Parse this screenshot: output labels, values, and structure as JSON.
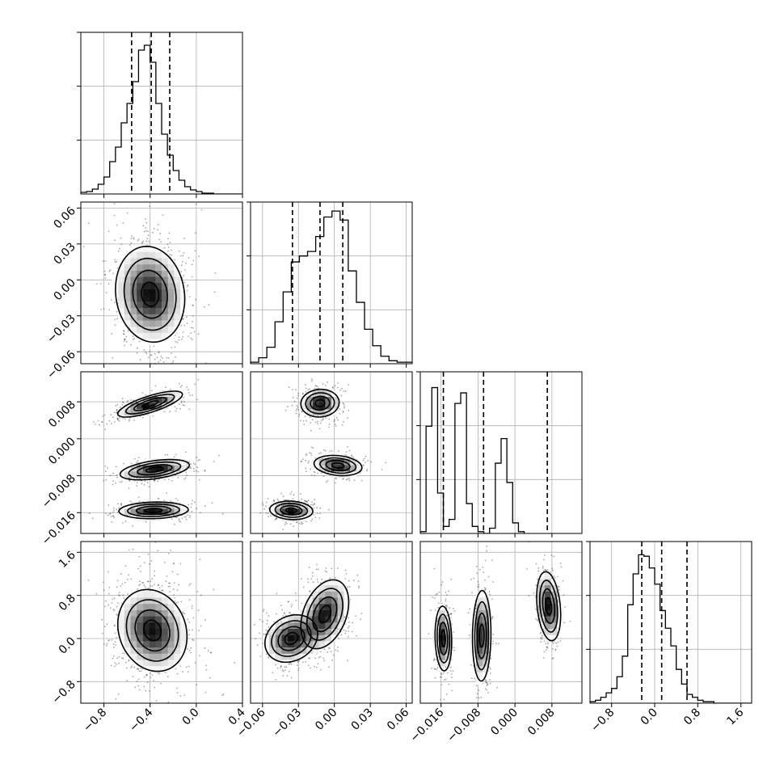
{
  "chart_data": {
    "type": "corner",
    "grid": true,
    "parameters": [
      {
        "id": "p0",
        "range": [
          -1.0,
          0.4
        ],
        "ticks": [
          {
            "value": -0.8,
            "label": "−0.8"
          },
          {
            "value": -0.4,
            "label": "−0.4"
          },
          {
            "value": 0.0,
            "label": "0.0"
          },
          {
            "value": 0.4,
            "label": "0.4"
          }
        ],
        "quantiles": [
          -0.56,
          -0.39,
          -0.23
        ],
        "hist": {
          "edges_start": -1.0,
          "bin_width": 0.05,
          "counts": [
            2,
            3,
            6,
            12,
            21,
            40,
            58,
            88,
            112,
            139,
            178,
            184,
            163,
            112,
            74,
            48,
            29,
            17,
            9,
            5,
            3,
            1,
            1,
            0,
            0,
            0,
            0,
            0
          ],
          "ymax": 200
        }
      },
      {
        "id": "p1",
        "range": [
          -0.07,
          0.065
        ],
        "ticks": [
          {
            "value": -0.06,
            "label": "−0.06"
          },
          {
            "value": -0.03,
            "label": "−0.03"
          },
          {
            "value": 0.0,
            "label": "0.00"
          },
          {
            "value": 0.03,
            "label": "0.03"
          },
          {
            "value": 0.06,
            "label": "0.06"
          }
        ],
        "quantiles": [
          -0.035,
          -0.012,
          0.007
        ],
        "hist": {
          "edges_start": -0.07,
          "bin_width": 0.0068,
          "counts": [
            1,
            4,
            11,
            28,
            48,
            68,
            72,
            75,
            85,
            98,
            102,
            96,
            62,
            41,
            23,
            12,
            5,
            2,
            1,
            1
          ],
          "ymax": 108
        }
      },
      {
        "id": "p2",
        "range": [
          -0.0205,
          0.0145
        ],
        "ticks": [
          {
            "value": -0.016,
            "label": "−0.016"
          },
          {
            "value": -0.008,
            "label": "−0.008"
          },
          {
            "value": 0.0,
            "label": "0.000"
          },
          {
            "value": 0.008,
            "label": "0.008"
          }
        ],
        "quantiles": [
          -0.0155,
          -0.0068,
          0.007
        ],
        "hist": {
          "edges_start": -0.0205,
          "bin_width": 0.00125,
          "counts": [
            1,
            61,
            83,
            23,
            4,
            8,
            74,
            80,
            17,
            4,
            1,
            0,
            3,
            40,
            54,
            29,
            6,
            1
          ],
          "ymax": 92
        }
      },
      {
        "id": "p3",
        "range": [
          -1.2,
          1.8
        ],
        "ticks": [
          {
            "value": -0.8,
            "label": "−0.8"
          },
          {
            "value": 0.0,
            "label": "0.0"
          },
          {
            "value": 0.8,
            "label": "0.8"
          },
          {
            "value": 1.6,
            "label": "1.6"
          }
        ],
        "ytick_values": [
          -0.8,
          0.0,
          0.8,
          1.6
        ],
        "quantiles": [
          -0.24,
          0.13,
          0.6
        ],
        "hist": {
          "edges_start": -1.2,
          "bin_width": 0.1,
          "counts": [
            1,
            2,
            4,
            7,
            10,
            18,
            32,
            67,
            88,
            101,
            100,
            92,
            81,
            63,
            51,
            39,
            23,
            13,
            6,
            4,
            2,
            1,
            1,
            0,
            0,
            0,
            0,
            0,
            0,
            0
          ],
          "ymax": 110
        }
      }
    ],
    "pairs": [
      {
        "row": 1,
        "col": 0,
        "clusters": [
          {
            "cx": -0.4,
            "cy": -0.012,
            "sx": 0.15,
            "sy": 0.02,
            "rho": -0.1,
            "n": 700
          }
        ]
      },
      {
        "row": 2,
        "col": 0,
        "clusters": [
          {
            "cx": -0.4,
            "cy": 0.0075,
            "sx": 0.14,
            "sy": 0.0014,
            "rho": 0.75,
            "n": 320
          },
          {
            "cx": -0.36,
            "cy": -0.0067,
            "sx": 0.15,
            "sy": 0.0011,
            "rho": 0.45,
            "n": 320
          },
          {
            "cx": -0.37,
            "cy": -0.0155,
            "sx": 0.15,
            "sy": 0.0009,
            "rho": 0.1,
            "n": 320
          }
        ]
      },
      {
        "row": 2,
        "col": 1,
        "clusters": [
          {
            "cx": -0.012,
            "cy": 0.0077,
            "sx": 0.008,
            "sy": 0.0015,
            "rho": 0.05,
            "n": 300
          },
          {
            "cx": 0.003,
            "cy": -0.0058,
            "sx": 0.01,
            "sy": 0.0011,
            "rho": -0.2,
            "n": 300
          },
          {
            "cx": -0.036,
            "cy": -0.0155,
            "sx": 0.009,
            "sy": 0.001,
            "rho": -0.1,
            "n": 300
          }
        ]
      },
      {
        "row": 3,
        "col": 0,
        "clusters": [
          {
            "cx": -0.38,
            "cy": 0.15,
            "sx": 0.15,
            "sy": 0.38,
            "rho": -0.15,
            "n": 800
          }
        ]
      },
      {
        "row": 3,
        "col": 1,
        "clusters": [
          {
            "cx": -0.036,
            "cy": 0.0,
            "sx": 0.011,
            "sy": 0.22,
            "rho": 0.2,
            "n": 380
          },
          {
            "cx": -0.008,
            "cy": 0.45,
            "sx": 0.01,
            "sy": 0.32,
            "rho": 0.35,
            "n": 380
          }
        ]
      },
      {
        "row": 3,
        "col": 2,
        "clusters": [
          {
            "cx": -0.0155,
            "cy": 0.0,
            "sx": 0.0009,
            "sy": 0.3,
            "rho": -0.1,
            "n": 300
          },
          {
            "cx": -0.0072,
            "cy": 0.05,
            "sx": 0.001,
            "sy": 0.42,
            "rho": 0.05,
            "n": 300
          },
          {
            "cx": 0.0073,
            "cy": 0.6,
            "sx": 0.0013,
            "sy": 0.32,
            "rho": -0.25,
            "n": 300
          }
        ]
      }
    ],
    "colors": {
      "points": "#000000",
      "density_fill_light": "#ffffff",
      "density_fill_dark": "#000000",
      "lines": "#000000",
      "grid": "#b0b0b0"
    }
  }
}
